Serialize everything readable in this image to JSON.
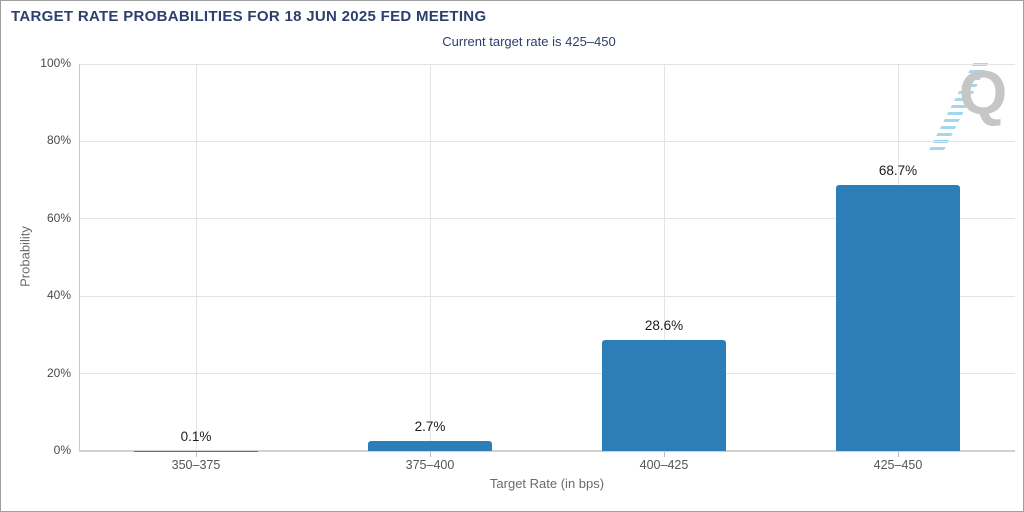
{
  "header": {
    "title": "TARGET RATE PROBABILITIES FOR 18 JUN 2025 FED MEETING",
    "subtitle": "Current target rate is 425–450"
  },
  "watermark": {
    "letter": "Q"
  },
  "colors": {
    "bar": "#2b7eb8",
    "title_text": "#2d3f6e",
    "grid": "#e4e4e4",
    "axis_line": "#c8c8c8",
    "ytick_text": "#4a4a4a",
    "xtick_text": "#555555",
    "axis_title_text": "#6b6b6b",
    "data_label_text": "#1c1c1c",
    "watermark_gray": "#c6c6c6",
    "watermark_blue": "#a5d6ef"
  },
  "chart_data": {
    "type": "bar",
    "title": "TARGET RATE PROBABILITIES FOR 18 JUN 2025 FED MEETING",
    "subtitle": "Current target rate is 425–450",
    "categories": [
      "350–375",
      "375–400",
      "400–425",
      "425–450"
    ],
    "values": [
      0.1,
      2.7,
      28.6,
      68.7
    ],
    "value_labels": [
      "0.1%",
      "2.7%",
      "28.6%",
      "68.7%"
    ],
    "xlabel": "Target Rate (in bps)",
    "ylabel": "Probability",
    "ylim": [
      0,
      100
    ],
    "yticks": [
      0,
      20,
      40,
      60,
      80,
      100
    ],
    "ytick_labels": [
      "0%",
      "20%",
      "40%",
      "60%",
      "80%",
      "100%"
    ],
    "grid": true,
    "legend_position": "none",
    "bar_color": "#2b7eb8"
  }
}
